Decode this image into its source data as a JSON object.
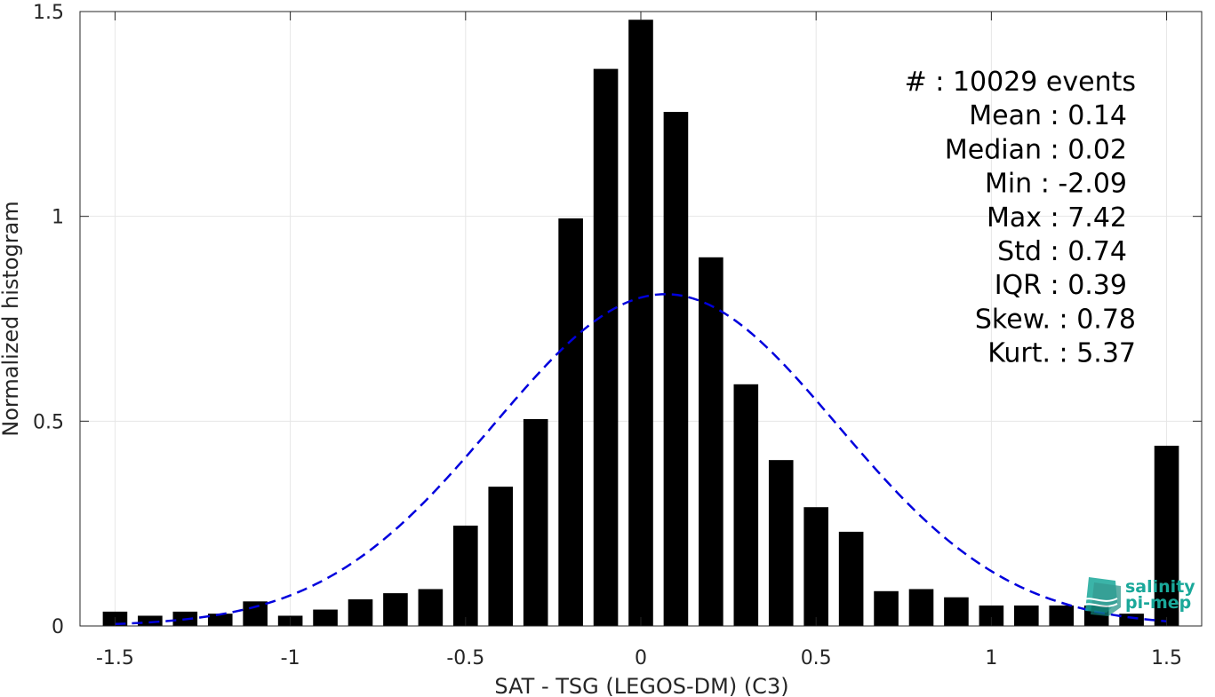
{
  "chart_data": {
    "type": "bar",
    "xlabel": "SAT - TSG (LEGOS-DM) (C3)",
    "ylabel": "Normalized histogram",
    "xlim": [
      -1.6,
      1.6
    ],
    "ylim": [
      0,
      1.5
    ],
    "xticks": [
      -1.5,
      -1,
      -0.5,
      0,
      0.5,
      1,
      1.5
    ],
    "xtick_labels": [
      "-1.5",
      "-1",
      "-0.5",
      "0",
      "0.5",
      "1",
      "1.5"
    ],
    "yticks": [
      0,
      0.5,
      1,
      1.5
    ],
    "ytick_labels": [
      "0",
      "0.5",
      "1",
      "1.5"
    ],
    "grid": true,
    "bar_color": "#000000",
    "bin_width": 0.1,
    "x": [
      -1.5,
      -1.4,
      -1.3,
      -1.2,
      -1.1,
      -1.0,
      -0.9,
      -0.8,
      -0.7,
      -0.6,
      -0.5,
      -0.4,
      -0.3,
      -0.2,
      -0.1,
      0.0,
      0.1,
      0.2,
      0.3,
      0.4,
      0.5,
      0.6,
      0.7,
      0.8,
      0.9,
      1.0,
      1.1,
      1.2,
      1.3,
      1.4,
      1.5
    ],
    "values": [
      0.035,
      0.025,
      0.035,
      0.03,
      0.06,
      0.025,
      0.04,
      0.065,
      0.08,
      0.09,
      0.245,
      0.34,
      0.505,
      0.995,
      1.36,
      1.48,
      1.255,
      0.9,
      0.59,
      0.405,
      0.29,
      0.23,
      0.085,
      0.09,
      0.07,
      0.05,
      0.05,
      0.05,
      0.05,
      0.03,
      0.44
    ],
    "fit_curve": {
      "style": "dashed",
      "color": "#0000dd",
      "mean": 0.07,
      "std": 0.49,
      "peak": 0.81,
      "x_range": [
        -1.5,
        1.5
      ]
    },
    "stats": [
      {
        "label": "#  : 10029 events",
        "anchor": "end",
        "x_align": 1278
      },
      {
        "label": "Mean : 0.14",
        "anchor": "end",
        "x_align": 1268
      },
      {
        "label": "Median : 0.02",
        "anchor": "end",
        "x_align": 1268
      },
      {
        "label": "Min : -2.09",
        "anchor": "end",
        "x_align": 1268
      },
      {
        "label": "Max : 7.42",
        "anchor": "end",
        "x_align": 1268
      },
      {
        "label": "Std : 0.74",
        "anchor": "end",
        "x_align": 1268
      },
      {
        "label": "IQR : 0.39",
        "anchor": "end",
        "x_align": 1268
      },
      {
        "label": "Skew. : 0.78",
        "anchor": "end",
        "x_align": 1278
      },
      {
        "label": "Kurt. : 5.37",
        "anchor": "end",
        "x_align": 1278
      }
    ]
  },
  "logo": {
    "line1": "salinity",
    "line2": "pi-mep",
    "color": "#1aa89a"
  }
}
